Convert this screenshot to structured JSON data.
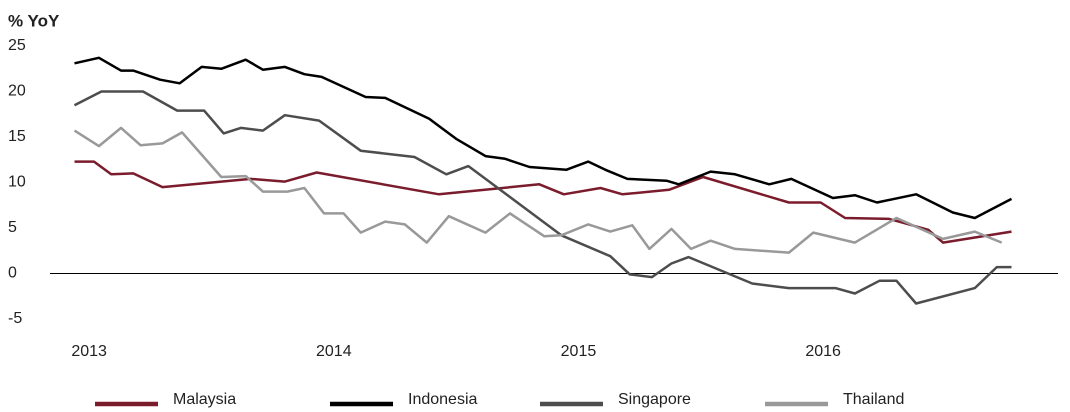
{
  "chart_data": {
    "type": "line",
    "title": "% YoY",
    "xlim": [
      2012.84,
      2016.96
    ],
    "xticks": [
      2013,
      2014,
      2015,
      2016
    ],
    "ylim": [
      -5,
      25
    ],
    "yticks": [
      25,
      20,
      15,
      10,
      5,
      0,
      -5
    ],
    "grid": false,
    "legend": "bottom",
    "series": [
      {
        "name": "Malaysia",
        "color": "#7b1c2c",
        "x": [
          2012.94,
          2013.02,
          2013.09,
          2013.18,
          2013.3,
          2013.66,
          2013.8,
          2013.93,
          2014.43,
          2014.84,
          2014.94,
          2015.09,
          2015.18,
          2015.37,
          2015.51,
          2015.86,
          2015.99,
          2016.09,
          2016.27,
          2016.43,
          2016.49,
          2016.77
        ],
        "values": [
          12.3,
          12.3,
          10.9,
          11.0,
          9.5,
          10.4,
          10.1,
          11.1,
          8.7,
          9.8,
          8.7,
          9.4,
          8.7,
          9.2,
          10.6,
          7.8,
          7.8,
          6.1,
          6.0,
          4.8,
          3.4,
          4.6
        ]
      },
      {
        "name": "Indonesia",
        "color": "#000000",
        "x": [
          2012.94,
          2013.04,
          2013.13,
          2013.18,
          2013.29,
          2013.37,
          2013.46,
          2013.54,
          2013.64,
          2013.71,
          2013.8,
          2013.88,
          2013.95,
          2014.13,
          2014.21,
          2014.39,
          2014.5,
          2014.62,
          2014.7,
          2014.8,
          2014.95,
          2015.04,
          2015.11,
          2015.2,
          2015.36,
          2015.41,
          2015.54,
          2015.64,
          2015.78,
          2015.87,
          2016.04,
          2016.13,
          2016.22,
          2016.38,
          2016.53,
          2016.62,
          2016.77
        ],
        "values": [
          23.1,
          23.7,
          22.3,
          22.3,
          21.3,
          20.9,
          22.7,
          22.5,
          23.5,
          22.4,
          22.7,
          21.9,
          21.6,
          19.4,
          19.3,
          17.0,
          14.8,
          12.9,
          12.6,
          11.7,
          11.4,
          12.3,
          11.4,
          10.4,
          10.2,
          9.8,
          11.2,
          10.9,
          9.8,
          10.4,
          8.3,
          8.6,
          7.8,
          8.7,
          6.7,
          6.1,
          8.2
        ]
      },
      {
        "name": "Singapore",
        "color": "#4d4d4d",
        "x": [
          2012.94,
          2013.05,
          2013.22,
          2013.36,
          2013.47,
          2013.55,
          2013.62,
          2013.71,
          2013.8,
          2013.94,
          2014.11,
          2014.33,
          2014.46,
          2014.55,
          2014.93,
          2015.13,
          2015.21,
          2015.3,
          2015.38,
          2015.45,
          2015.71,
          2015.86,
          2016.05,
          2016.13,
          2016.23,
          2016.3,
          2016.38,
          2016.62,
          2016.71,
          2016.77
        ],
        "values": [
          18.5,
          20.0,
          20.0,
          17.9,
          17.9,
          15.4,
          16.0,
          15.7,
          17.4,
          16.8,
          13.5,
          12.8,
          10.9,
          11.8,
          4.2,
          1.9,
          -0.1,
          -0.4,
          1.1,
          1.8,
          -1.1,
          -1.6,
          -1.6,
          -2.2,
          -0.8,
          -0.8,
          -3.3,
          -1.6,
          0.7,
          0.7
        ]
      },
      {
        "name": "Thailand",
        "color": "#999999",
        "x": [
          2012.94,
          2013.04,
          2013.13,
          2013.21,
          2013.3,
          2013.38,
          2013.54,
          2013.64,
          2013.71,
          2013.81,
          2013.88,
          2013.96,
          2014.04,
          2014.11,
          2014.21,
          2014.29,
          2014.38,
          2014.47,
          2014.62,
          2014.72,
          2014.86,
          2014.93,
          2015.04,
          2015.13,
          2015.22,
          2015.29,
          2015.38,
          2015.46,
          2015.54,
          2015.64,
          2015.86,
          2015.96,
          2016.13,
          2016.3,
          2016.49,
          2016.62,
          2016.73
        ],
        "values": [
          15.7,
          14.0,
          16.0,
          14.1,
          14.3,
          15.5,
          10.6,
          10.7,
          9.0,
          9.0,
          9.4,
          6.6,
          6.6,
          4.5,
          5.7,
          5.4,
          3.4,
          6.3,
          4.5,
          6.6,
          4.1,
          4.2,
          5.4,
          4.6,
          5.3,
          2.7,
          4.9,
          2.7,
          3.6,
          2.7,
          2.3,
          4.5,
          3.4,
          6.1,
          3.8,
          4.6,
          3.4
        ]
      }
    ]
  }
}
